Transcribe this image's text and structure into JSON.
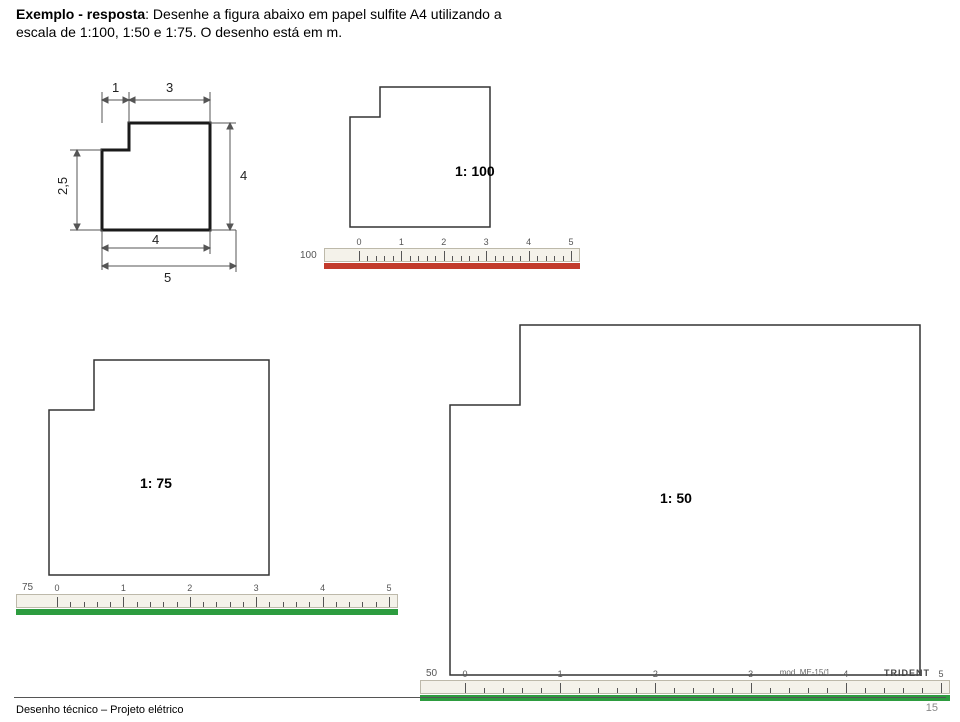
{
  "title_prefix": "Exemplo - resposta",
  "title_rest": ": Desenhe a figura abaixo em papel sulfite A4 utilizando a",
  "title_line2": "escala de 1:100, 1:50 e 1:75. O desenho está em m.",
  "dimensions": {
    "d_top_left": "1",
    "d_top_right": "3",
    "d_left": "2,5",
    "d_right": "4",
    "d_bot_inner": "4",
    "d_bot_outer": "5"
  },
  "labels": {
    "l100": "1: 100",
    "l75": "1: 75",
    "l50": "1: 50"
  },
  "rulers": {
    "r100": {
      "leftnum": "100",
      "color": "#c23a2b",
      "ticks": [
        "0",
        "1",
        "2",
        "3",
        "4",
        "5"
      ]
    },
    "r75": {
      "leftnum": "75",
      "color": "#2d9c3f",
      "ticks": [
        "0",
        "1",
        "2",
        "3",
        "4",
        "5"
      ]
    },
    "r50": {
      "leftnum": "50",
      "color": "#2d9c3f",
      "ticks": [
        "0",
        "1",
        "2",
        "3",
        "4",
        "5"
      ],
      "brand": "mod. ME-15/1",
      "brandlogo": "TRIDENT"
    }
  },
  "footer": "Desenho técnico – Projeto elétrico",
  "page": "15",
  "colors": {
    "stroke": "#1a1a1a",
    "dim": "#6b6b6b",
    "bg": "#ffffff"
  }
}
